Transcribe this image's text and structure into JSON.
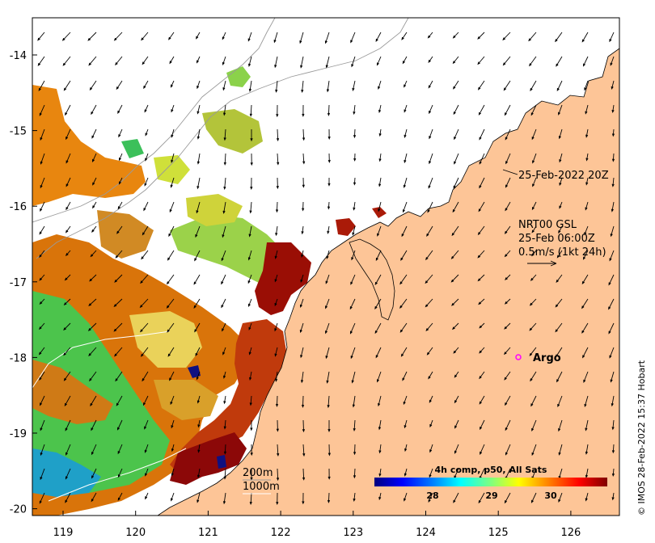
{
  "map": {
    "lon_ticks": [
      "119",
      "120",
      "121",
      "122",
      "123",
      "124",
      "125",
      "126"
    ],
    "lat_ticks": [
      "-14",
      "-15",
      "-16",
      "-17",
      "-18",
      "-19",
      "-20"
    ],
    "timestamp_label": "25-Feb-2022 20Z",
    "current_source": "NRT00 GSL",
    "current_time": "25-Feb 06:00Z",
    "current_scale": "0.5m/s (1kt 24h)",
    "argo_label": "Argo",
    "isobath_200": "200m",
    "isobath_1000": "1000m",
    "colorbar_title": "4h comp, p50, All Sats",
    "colorbar_ticks": [
      "28",
      "29",
      "30"
    ],
    "credit": "© IMOS 28-Feb-2022 15:37 Hobart",
    "colors": {
      "land": "#fdc597",
      "argo_marker": "#ff00ff",
      "colormap": [
        "#00007f",
        "#0000ff",
        "#007fff",
        "#00ffff",
        "#7fff7f",
        "#ffff00",
        "#ff7f00",
        "#ff0000",
        "#7f0000"
      ]
    }
  }
}
